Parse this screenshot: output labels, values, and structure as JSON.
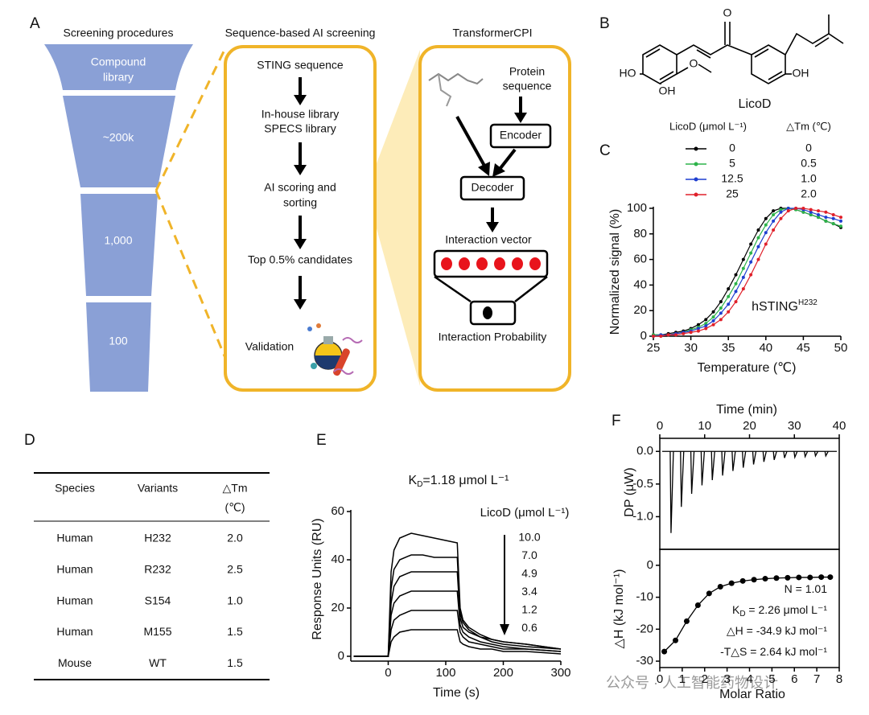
{
  "panels": {
    "a": "A",
    "b": "B",
    "c": "C",
    "d": "D",
    "e": "E",
    "f": "F"
  },
  "panel_a": {
    "funnel_title": "Screening procedures",
    "funnel": [
      "Compound",
      "library",
      "~200k",
      "1,000",
      "100"
    ],
    "screen_title": "Sequence-based AI screening",
    "steps": [
      "STING sequence",
      "In-house library",
      "SPECS library",
      "AI scoring and",
      "sorting",
      "Top 0.5% candidates",
      "Validation"
    ],
    "model_title": "TransformerCPI",
    "model": [
      "Protein",
      "sequence",
      "Encoder",
      "Decoder",
      "Interaction vector",
      "Interaction Probability"
    ]
  },
  "panel_b": {
    "atoms": [
      "O",
      "O",
      "HO",
      "OH",
      "OH"
    ],
    "name": "LicoD"
  },
  "table": {
    "header": [
      "Species",
      "Variants",
      "△Tm",
      "(℃)"
    ],
    "rows": [
      [
        "Human",
        "H232",
        "2.0"
      ],
      [
        "Human",
        "R232",
        "2.5"
      ],
      [
        "Human",
        "S154",
        "1.0"
      ],
      [
        "Human",
        "M155",
        "1.5"
      ],
      [
        "Mouse",
        "WT",
        "1.5"
      ]
    ]
  },
  "watermark": "公众号 · 人工智能药物设计",
  "chart_data": [
    {
      "type": "line",
      "x_label": "Temperature (℃)",
      "y_label": "Normalized signal (%)",
      "legend_title": "LicoD (μmol L⁻¹)",
      "legend_value_title": "△Tm (℃)",
      "annotation": {
        "text": "hSTING",
        "sup": "H232"
      },
      "markers": true,
      "x": [
        25,
        26,
        27,
        28,
        29,
        30,
        31,
        32,
        33,
        34,
        35,
        36,
        37,
        38,
        39,
        40,
        41,
        42,
        43,
        44,
        45,
        46,
        47,
        48,
        49,
        50
      ],
      "xlim": [
        25,
        50
      ],
      "xticks": [
        25,
        30,
        35,
        40,
        45,
        50
      ],
      "ylim": [
        0,
        100
      ],
      "yticks": [
        0,
        20,
        40,
        60,
        80,
        100
      ],
      "series": [
        {
          "name": "0",
          "delta_tm": "0",
          "color": "#000000",
          "values": [
            1,
            1,
            2,
            3,
            4,
            6,
            9,
            13,
            19,
            27,
            37,
            48,
            60,
            72,
            83,
            92,
            98,
            100,
            100,
            99,
            97,
            95,
            93,
            90,
            88,
            85
          ]
        },
        {
          "name": "5",
          "delta_tm": "0.5",
          "color": "#2db34a",
          "values": [
            1,
            1,
            1,
            2,
            3,
            5,
            7,
            10,
            15,
            22,
            31,
            41,
            53,
            65,
            77,
            87,
            95,
            99,
            100,
            99,
            97,
            95,
            93,
            90,
            88,
            86
          ]
        },
        {
          "name": "12.5",
          "delta_tm": "1.0",
          "color": "#1f3fd0",
          "values": [
            0,
            1,
            1,
            2,
            3,
            4,
            6,
            8,
            12,
            18,
            25,
            35,
            46,
            58,
            70,
            81,
            90,
            97,
            100,
            100,
            99,
            97,
            95,
            93,
            92,
            90
          ]
        },
        {
          "name": "25",
          "delta_tm": "2.0",
          "color": "#e0202a",
          "values": [
            0,
            0,
            1,
            1,
            2,
            3,
            4,
            6,
            9,
            13,
            19,
            27,
            37,
            48,
            60,
            72,
            83,
            92,
            98,
            100,
            100,
            99,
            98,
            97,
            95,
            93
          ]
        }
      ]
    },
    {
      "type": "line",
      "x_label": "Time (s)",
      "y_label": "Response Units (RU)",
      "annotation": {
        "text": "K",
        "sub": "D",
        "rest": "=1.18 μmol L⁻¹"
      },
      "legend_title": "LicoD (μmol L⁻¹)",
      "markers": false,
      "x": [
        -60,
        -40,
        -20,
        0,
        5,
        10,
        20,
        40,
        60,
        80,
        100,
        120,
        125,
        130,
        140,
        160,
        180,
        200,
        240,
        300
      ],
      "xlim": [
        -65,
        300
      ],
      "xticks": [
        0,
        100,
        200,
        300
      ],
      "ylim": [
        -2,
        60
      ],
      "yticks": [
        0,
        20,
        40,
        60
      ],
      "series": [
        {
          "name": "10.0",
          "color": "#000000",
          "values": [
            0,
            0,
            0,
            0,
            35,
            44,
            49,
            51,
            50,
            49,
            48,
            47,
            20,
            15,
            12,
            9,
            7,
            6,
            5,
            3
          ]
        },
        {
          "name": "7.0",
          "color": "#000000",
          "values": [
            0,
            0,
            0,
            0,
            28,
            36,
            40,
            42,
            42,
            41,
            41,
            41,
            18,
            14,
            11,
            8,
            7,
            6,
            5,
            3
          ]
        },
        {
          "name": "4.9",
          "color": "#000000",
          "values": [
            0,
            0,
            0,
            0,
            22,
            29,
            33,
            35,
            35,
            35,
            35,
            35,
            16,
            12,
            10,
            8,
            6,
            5,
            4,
            3
          ]
        },
        {
          "name": "3.4",
          "color": "#000000",
          "values": [
            0,
            0,
            0,
            0,
            17,
            22,
            25,
            27,
            27,
            27,
            27,
            27,
            13,
            10,
            8,
            6,
            5,
            4,
            3,
            2
          ]
        },
        {
          "name": "1.2",
          "color": "#000000",
          "values": [
            0,
            0,
            0,
            0,
            11,
            15,
            17,
            19,
            19,
            19,
            19,
            19,
            10,
            8,
            6,
            5,
            4,
            3,
            3,
            2
          ]
        },
        {
          "name": "0.6",
          "color": "#000000",
          "values": [
            0,
            0,
            0,
            0,
            6,
            8,
            10,
            11,
            11,
            11,
            11,
            11,
            6,
            5,
            4,
            3,
            3,
            2,
            2,
            1
          ]
        }
      ]
    },
    {
      "type": "spike",
      "x_label": "Time (min)",
      "y_label": "DP (μW)",
      "color": "#000000",
      "x": [
        2.5,
        4.8,
        7.1,
        9.4,
        11.7,
        14.0,
        16.3,
        18.6,
        20.9,
        23.2,
        25.5,
        27.8,
        30.1,
        32.4,
        34.7,
        37.0
      ],
      "values": [
        -1.25,
        -0.85,
        -0.65,
        -0.52,
        -0.44,
        -0.37,
        -0.3,
        -0.25,
        -0.2,
        -0.16,
        -0.13,
        -0.1,
        -0.09,
        -0.08,
        -0.07,
        -0.07
      ],
      "xlim": [
        0,
        40
      ],
      "xticks": [
        0,
        10,
        20,
        30,
        40
      ],
      "ylim": [
        -1.5,
        0.2
      ],
      "yticks": [
        {
          "value": -1,
          "label": "-1.0"
        },
        {
          "value": -0.5,
          "label": "-0.5"
        },
        {
          "value": 0,
          "label": "0.0"
        }
      ]
    },
    {
      "type": "scatter",
      "x_label": "Molar Ratio",
      "y_label": "△H (kJ mol⁻¹)",
      "color": "#000000",
      "annotations": [
        {
          "text": "N = 1.01"
        },
        {
          "text": "K",
          "sub": "D",
          "rest": " = 2.26 μmol L⁻¹"
        },
        {
          "text": "△H = -34.9 kJ mol⁻¹"
        },
        {
          "text": "-T△S = 2.64 kJ mol⁻¹"
        }
      ],
      "x": [
        0.2,
        0.7,
        1.2,
        1.7,
        2.2,
        2.7,
        3.2,
        3.7,
        4.2,
        4.7,
        5.2,
        5.7,
        6.2,
        6.7,
        7.2,
        7.6
      ],
      "values": [
        -27,
        -23.5,
        -17.5,
        -12.5,
        -8.8,
        -6.7,
        -5.6,
        -4.9,
        -4.5,
        -4.2,
        -4.0,
        -3.9,
        -3.8,
        -3.8,
        -3.7,
        -3.7
      ],
      "xlim": [
        0,
        8
      ],
      "xticks": [
        0,
        1,
        2,
        3,
        4,
        5,
        6,
        7,
        8
      ],
      "ylim": [
        -32,
        5
      ],
      "yticks": [
        -30,
        -20,
        -10,
        0
      ]
    }
  ]
}
